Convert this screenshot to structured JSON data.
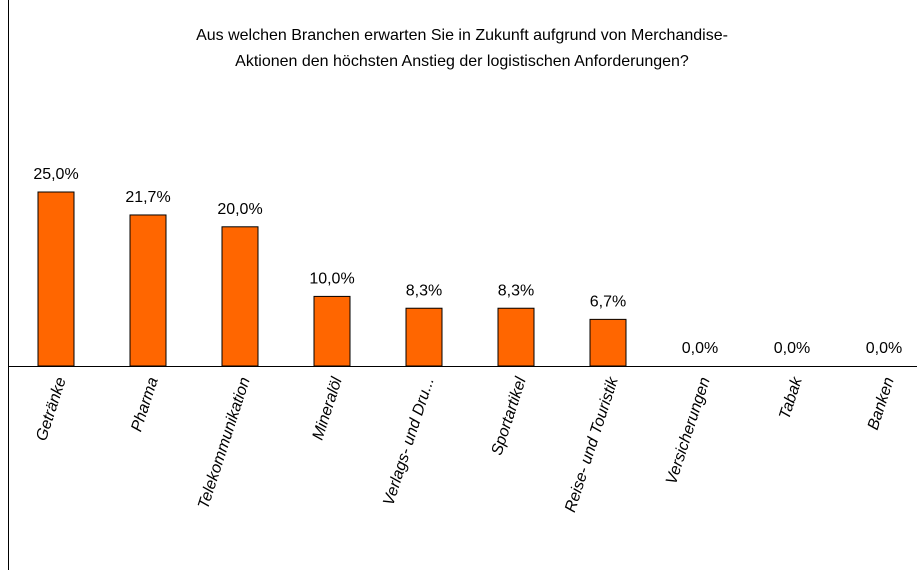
{
  "chart_data": {
    "type": "bar",
    "title": [
      "Aus welchen Branchen erwarten Sie in Zukunft aufgrund von Merchandise-",
      "Aktionen den höchsten Anstieg der logistischen Anforderungen?"
    ],
    "categories": [
      "Getränke",
      "Pharma",
      "Telekommunikation",
      "Mineralöl",
      "Verlags- und Dru...",
      "Sportartikel",
      "Reise- und Touristik",
      "Versicherungen",
      "Tabak",
      "Banken"
    ],
    "values": [
      25.0,
      21.7,
      20.0,
      10.0,
      8.3,
      8.3,
      6.7,
      0.0,
      0.0,
      0.0
    ],
    "value_labels": [
      "25,0%",
      "21,7%",
      "20,0%",
      "10,0%",
      "8,3%",
      "8,3%",
      "6,7%",
      "0,0%",
      "0,0%",
      "0,0%"
    ],
    "color": "#ff6600"
  }
}
